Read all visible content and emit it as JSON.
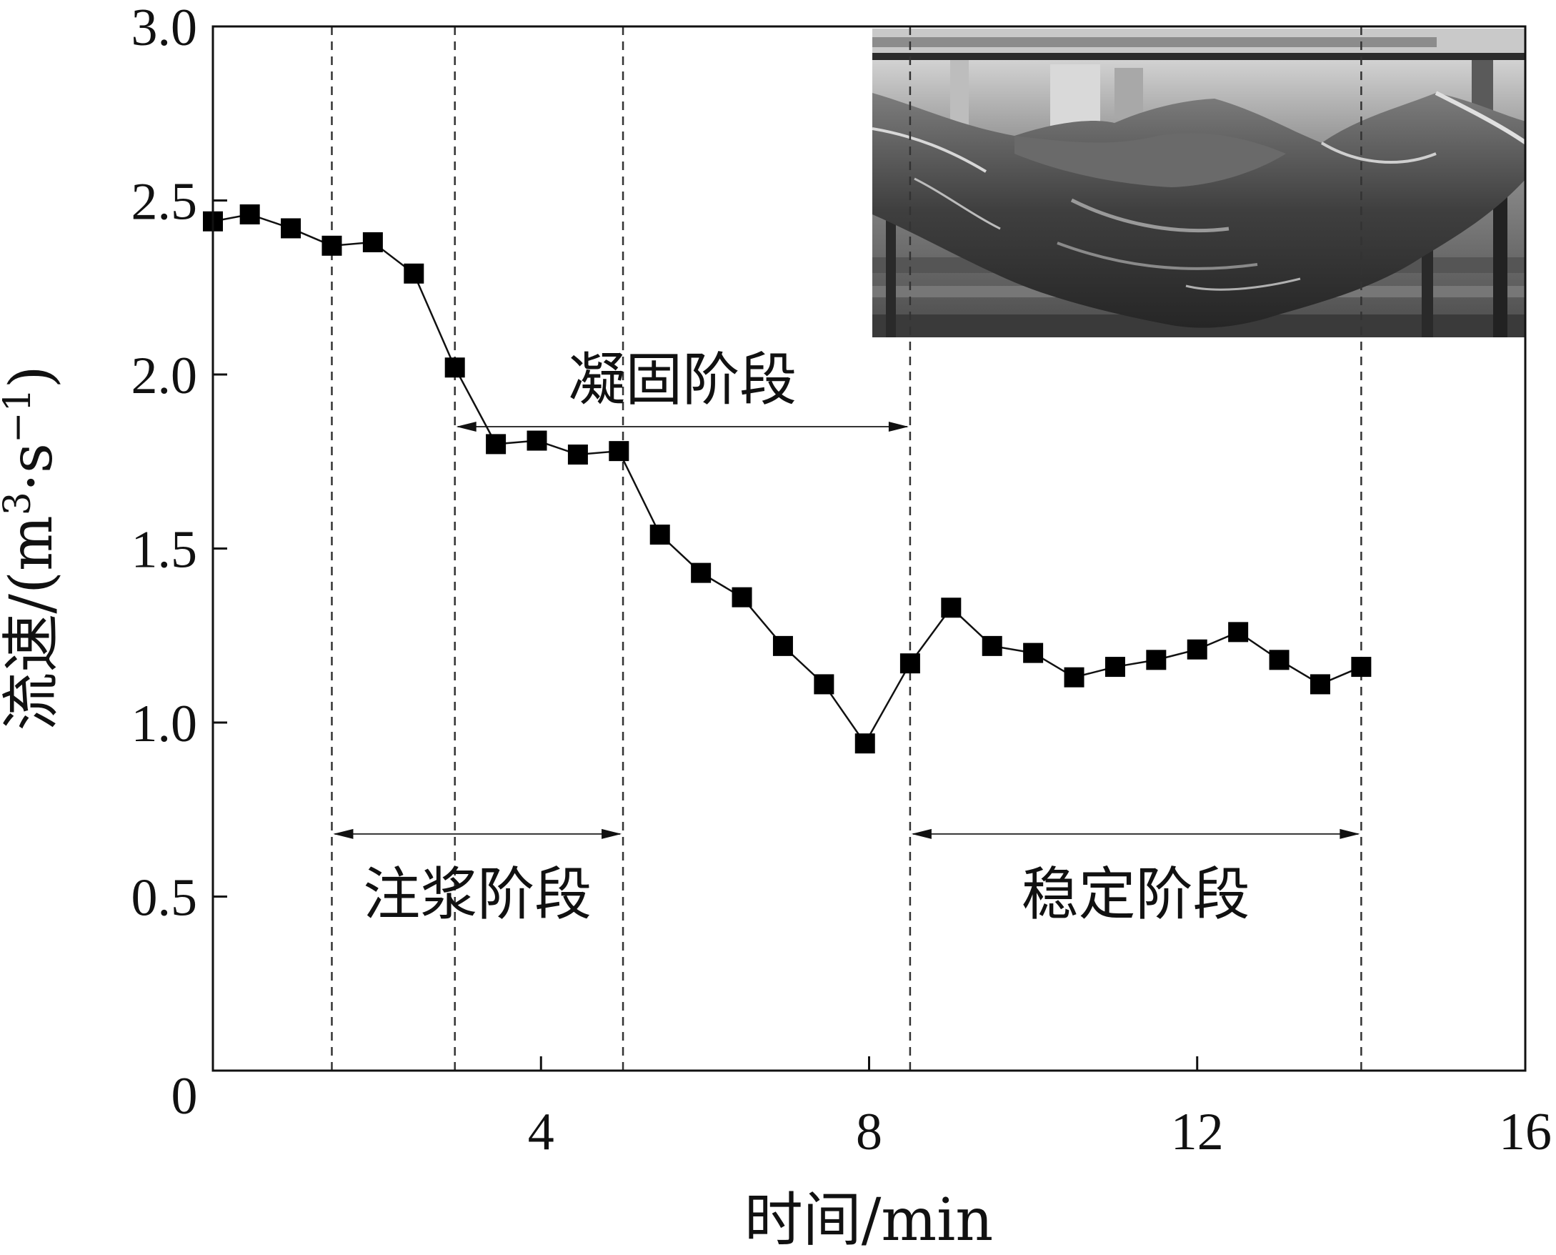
{
  "chart_data": {
    "type": "line",
    "xlabel": "时间/min",
    "ylabel_main": "流速/(m",
    "ylabel_sup1": "3",
    "ylabel_mid": "·s",
    "ylabel_sup2": "−1",
    "ylabel_end": ")",
    "xlim": [
      0,
      16
    ],
    "ylim": [
      0,
      3.0
    ],
    "xticks": [
      0,
      4,
      8,
      12,
      16
    ],
    "xtick_labels": [
      "0",
      "4",
      "8",
      "12",
      "16"
    ],
    "yticks": [
      0.5,
      1.0,
      1.5,
      2.0,
      2.5,
      3.0
    ],
    "ytick_labels": [
      "0.5",
      "1.0",
      "1.5",
      "2.0",
      "2.5",
      "3.0"
    ],
    "grid": false,
    "marker": "square",
    "series": [
      {
        "x": [
          0,
          0.45,
          0.95,
          1.45,
          1.95,
          2.45,
          2.95,
          3.45,
          3.95,
          4.45,
          4.95,
          5.45,
          5.95,
          6.45,
          6.95,
          7.45,
          7.95,
          8.5,
          9.0,
          9.5,
          10.0,
          10.5,
          11.0,
          11.5,
          12.0,
          12.5,
          13.0,
          13.5,
          14.0
        ],
        "values": [
          2.44,
          2.46,
          2.42,
          2.37,
          2.38,
          2.29,
          2.02,
          1.8,
          1.81,
          1.77,
          1.78,
          1.54,
          1.43,
          1.36,
          1.22,
          1.11,
          0.94,
          1.17,
          1.33,
          1.22,
          1.2,
          1.13,
          1.16,
          1.18,
          1.21,
          1.26,
          1.18,
          1.11,
          1.16
        ]
      }
    ],
    "dashed_vlines_x": [
      1.45,
      2.95,
      5.0,
      8.5,
      14.0
    ],
    "stages": [
      {
        "label": "注浆阶段",
        "x_start": 1.45,
        "x_end": 5.0,
        "arrow_y": 0.68,
        "label_pos": "below-arrow"
      },
      {
        "label": "凝固阶段",
        "x_start": 2.95,
        "x_end": 8.5,
        "arrow_y": 1.85,
        "label_pos": "above-arrow"
      },
      {
        "label": "稳定阶段",
        "x_start": 8.5,
        "x_end": 14.0,
        "arrow_y": 0.68,
        "label_pos": "below-arrow"
      }
    ]
  },
  "inset_photo": {
    "position": "top-right",
    "palette": [
      "#1b1b1b",
      "#3a3a3a",
      "#5e5e5e",
      "#8a8a8a",
      "#b8b8b8",
      "#e4e4e4"
    ]
  }
}
